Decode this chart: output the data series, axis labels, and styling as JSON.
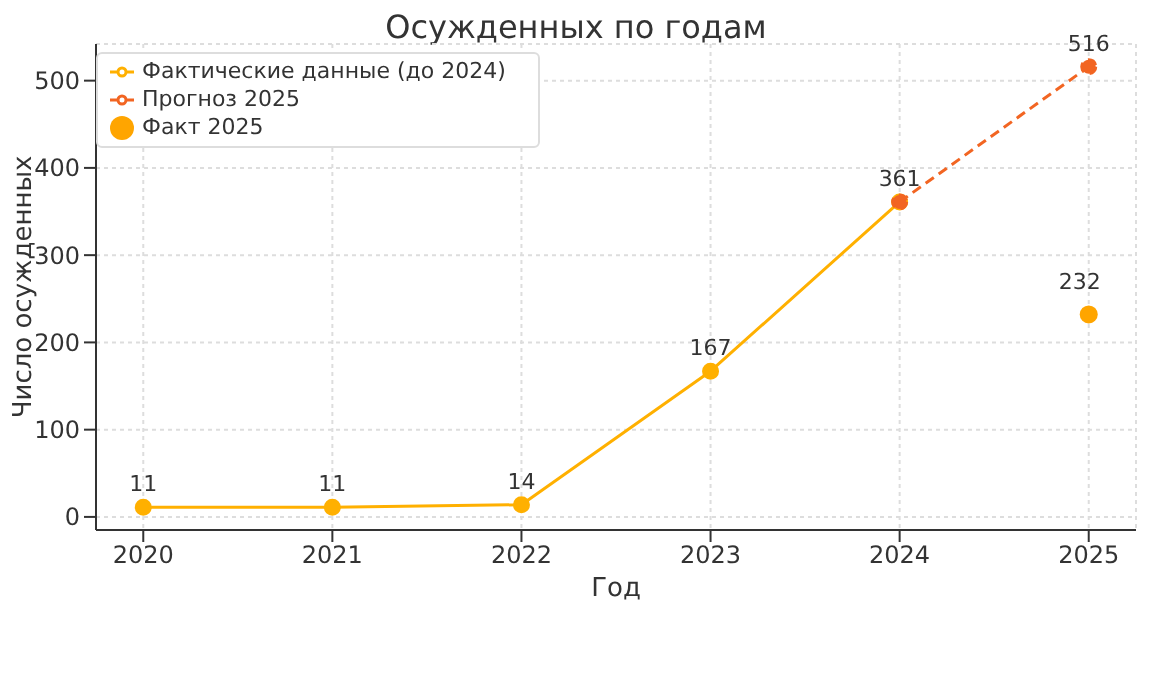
{
  "chart_data": {
    "type": "line",
    "title": "Осужденных по годам",
    "xlabel": "Год",
    "ylabel": "Число осужденных",
    "xlim": [
      2019.75,
      2025.25
    ],
    "xticks": [
      2020,
      2021,
      2022,
      2023,
      2024,
      2025
    ],
    "ylim": [
      -15,
      542
    ],
    "yticks": [
      0,
      100,
      200,
      300,
      400,
      500
    ],
    "grid": true,
    "legend": "top left",
    "marker": "circle",
    "data_labels": true,
    "series": [
      {
        "name": "Фактические данные (до 2024)",
        "type": "line",
        "color": "#ffb000",
        "line_style": "solid",
        "x": [
          2020,
          2021,
          2022,
          2023,
          2024
        ],
        "values": [
          11,
          11,
          14,
          167,
          361
        ]
      },
      {
        "name": "Прогноз 2025",
        "type": "line",
        "color": "#f26522",
        "line_style": "dashed",
        "x": [
          2024,
          2025
        ],
        "values": [
          361,
          516
        ],
        "value_labels": [
          null,
          "516"
        ]
      },
      {
        "name": "Факт 2025",
        "type": "scatter",
        "color": "#ffa500",
        "x": [
          2025
        ],
        "values": [
          232
        ]
      }
    ]
  }
}
